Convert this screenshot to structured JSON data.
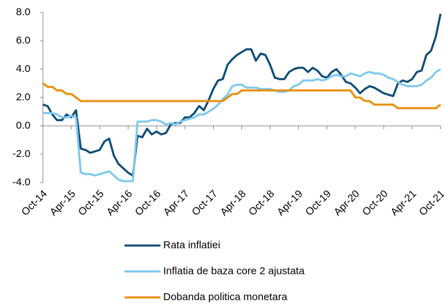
{
  "chart_data": {
    "type": "line",
    "categories": [
      "Oct-14",
      null,
      null,
      null,
      null,
      null,
      "Apr-15",
      null,
      null,
      null,
      null,
      null,
      "Oct-15",
      null,
      null,
      null,
      null,
      null,
      "Apr-16",
      null,
      null,
      null,
      null,
      null,
      "Oct-16",
      null,
      null,
      null,
      null,
      null,
      "Apr-17",
      null,
      null,
      null,
      null,
      null,
      "Oct-17",
      null,
      null,
      null,
      null,
      null,
      "Apr-18",
      null,
      null,
      null,
      null,
      null,
      "Oct-18",
      null,
      null,
      null,
      null,
      null,
      "Apr-19",
      null,
      null,
      null,
      null,
      null,
      "Oct-19",
      null,
      null,
      null,
      null,
      null,
      "Apr-20",
      null,
      null,
      null,
      null,
      null,
      "Oct-20",
      null,
      null,
      null,
      null,
      null,
      "Apr-21",
      null,
      null,
      null,
      null,
      null,
      "Oct-21"
    ],
    "series": [
      {
        "name": "Rata inflatiei",
        "color": "#0f4c75",
        "values": [
          1.5,
          1.4,
          0.8,
          0.4,
          0.4,
          0.8,
          0.6,
          1.1,
          -1.6,
          -1.7,
          -1.9,
          -1.8,
          -1.7,
          -1.1,
          -0.9,
          -2.1,
          -2.7,
          -3.0,
          -3.3,
          -3.5,
          -0.7,
          -0.8,
          -0.2,
          -0.6,
          -0.4,
          -0.6,
          -0.5,
          0.1,
          0.2,
          0.2,
          0.6,
          0.6,
          0.9,
          1.4,
          1.1,
          1.8,
          2.6,
          3.2,
          3.3,
          4.3,
          4.7,
          5.0,
          5.2,
          5.4,
          5.4,
          4.6,
          5.1,
          5.0,
          4.3,
          3.4,
          3.3,
          3.3,
          3.8,
          4.0,
          4.1,
          4.1,
          3.8,
          4.1,
          3.9,
          3.5,
          3.4,
          3.8,
          4.0,
          3.6,
          3.1,
          3.0,
          2.7,
          2.3,
          2.6,
          2.8,
          2.7,
          2.5,
          2.3,
          2.2,
          2.1,
          3.0,
          3.2,
          3.1,
          3.3,
          3.8,
          3.9,
          5.0,
          5.3,
          6.3,
          7.9
        ]
      },
      {
        "name": "Inflatia de baza core 2 ajustata",
        "color": "#80c8ee",
        "values": [
          0.9,
          0.9,
          0.9,
          0.8,
          0.6,
          0.6,
          0.7,
          0.6,
          -3.3,
          -3.4,
          -3.4,
          -3.5,
          -3.4,
          -3.3,
          -3.2,
          -3.5,
          -3.8,
          -3.9,
          -3.9,
          -3.9,
          0.3,
          0.3,
          0.3,
          0.4,
          0.4,
          0.3,
          0.1,
          0.2,
          0.1,
          0.3,
          0.4,
          0.5,
          0.6,
          0.8,
          0.8,
          1.0,
          1.2,
          1.5,
          1.9,
          2.2,
          2.8,
          2.9,
          2.9,
          2.7,
          2.7,
          2.7,
          2.6,
          2.6,
          2.6,
          2.5,
          2.4,
          2.4,
          2.5,
          2.8,
          2.9,
          3.2,
          3.2,
          3.2,
          3.3,
          3.2,
          3.3,
          3.5,
          3.6,
          3.5,
          3.5,
          3.7,
          3.6,
          3.5,
          3.7,
          3.8,
          3.7,
          3.7,
          3.6,
          3.4,
          3.3,
          3.1,
          2.9,
          2.8,
          2.8,
          2.8,
          2.9,
          3.2,
          3.4,
          3.8,
          4.0
        ]
      },
      {
        "name": "Dobanda politica monetara",
        "color": "#e8900e",
        "values": [
          3.0,
          2.75,
          2.75,
          2.5,
          2.5,
          2.25,
          2.25,
          2.0,
          1.75,
          1.75,
          1.75,
          1.75,
          1.75,
          1.75,
          1.75,
          1.75,
          1.75,
          1.75,
          1.75,
          1.75,
          1.75,
          1.75,
          1.75,
          1.75,
          1.75,
          1.75,
          1.75,
          1.75,
          1.75,
          1.75,
          1.75,
          1.75,
          1.75,
          1.75,
          1.75,
          1.75,
          1.75,
          1.75,
          1.75,
          2.0,
          2.25,
          2.25,
          2.5,
          2.5,
          2.5,
          2.5,
          2.5,
          2.5,
          2.5,
          2.5,
          2.5,
          2.5,
          2.5,
          2.5,
          2.5,
          2.5,
          2.5,
          2.5,
          2.5,
          2.5,
          2.5,
          2.5,
          2.5,
          2.5,
          2.5,
          2.5,
          2.0,
          2.0,
          1.75,
          1.75,
          1.5,
          1.5,
          1.5,
          1.5,
          1.5,
          1.25,
          1.25,
          1.25,
          1.25,
          1.25,
          1.25,
          1.25,
          1.25,
          1.25,
          1.5
        ]
      }
    ],
    "ylim": [
      -4,
      8
    ],
    "yticks": [
      {
        "value": -4,
        "label": "-4.0"
      },
      {
        "value": -2,
        "label": "-2.0"
      },
      {
        "value": 0,
        "label": "0.0"
      },
      {
        "value": 2,
        "label": "2.0"
      },
      {
        "value": 4,
        "label": "4.0"
      },
      {
        "value": 6,
        "label": "6.0"
      },
      {
        "value": 8,
        "label": "8.0"
      }
    ],
    "grid": false,
    "legend": "bottom"
  }
}
